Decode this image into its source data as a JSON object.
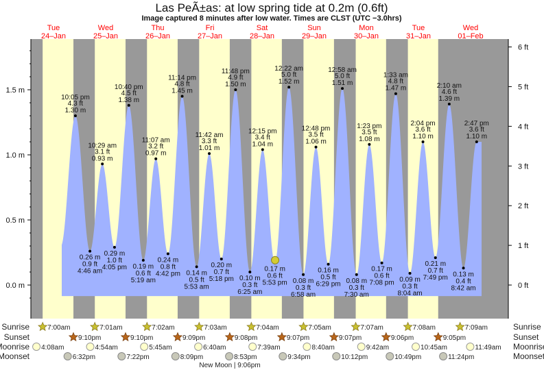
{
  "title": "Las PeÃ±as: at low  spring tide at 0.2m (0.6ft)",
  "subtitle": "Image captured 8 minutes after low water. Times are CLST (UTC −3.0hrs)",
  "colors": {
    "day": "#ffffcc",
    "night": "#999999",
    "water": "#a0b2ff",
    "day_label": "#ff0000",
    "now_marker": "#d4cc33"
  },
  "days": [
    {
      "weekday": "Tue",
      "date": "24–Jan"
    },
    {
      "weekday": "Wed",
      "date": "25–Jan"
    },
    {
      "weekday": "Thu",
      "date": "26–Jan"
    },
    {
      "weekday": "Fri",
      "date": "27–Jan"
    },
    {
      "weekday": "Sat",
      "date": "28–Jan"
    },
    {
      "weekday": "Sun",
      "date": "29–Jan"
    },
    {
      "weekday": "Mon",
      "date": "30–Jan"
    },
    {
      "weekday": "Tue",
      "date": "31–Jan"
    },
    {
      "weekday": "Wed",
      "date": "01–Feb"
    }
  ],
  "chart_data": {
    "type": "area",
    "y_left_ticks": [
      "0.0 m",
      "0.5 m",
      "1.0 m",
      "1.5 m"
    ],
    "y_left_values": [
      0,
      0.5,
      1.0,
      1.5
    ],
    "y_right_ticks": [
      "0 ft",
      "1 ft",
      "2 ft",
      "3 ft",
      "4 ft",
      "5 ft",
      "6 ft"
    ],
    "y_right_values": [
      0,
      1,
      2,
      3,
      4,
      5,
      6
    ],
    "now": {
      "day": "28–Jan",
      "time": "6:01 pm",
      "m": 0.17
    },
    "extremes": [
      {
        "day": "24–Jan",
        "time": "10:05 pm",
        "ft": "4.3 ft",
        "m": 1.3,
        "type": "high"
      },
      {
        "day": "25–Jan",
        "time": "4:46 am",
        "ft": "0.9 ft",
        "m": 0.26,
        "type": "low"
      },
      {
        "day": "25–Jan",
        "time": "10:29 am",
        "ft": "3.1 ft",
        "m": 0.93,
        "type": "high"
      },
      {
        "day": "25–Jan",
        "time": "4:05 pm",
        "ft": "1.0 ft",
        "m": 0.29,
        "type": "low"
      },
      {
        "day": "25–Jan",
        "time": "10:40 pm",
        "ft": "4.5 ft",
        "m": 1.38,
        "type": "high"
      },
      {
        "day": "26–Jan",
        "time": "5:19 am",
        "ft": "0.6 ft",
        "m": 0.19,
        "type": "low"
      },
      {
        "day": "26–Jan",
        "time": "11:07 am",
        "ft": "3.2 ft",
        "m": 0.97,
        "type": "high"
      },
      {
        "day": "26–Jan",
        "time": "4:42 pm",
        "ft": "0.8 ft",
        "m": 0.24,
        "type": "low"
      },
      {
        "day": "26–Jan",
        "time": "11:14 pm",
        "ft": "4.8 ft",
        "m": 1.45,
        "type": "high"
      },
      {
        "day": "27–Jan",
        "time": "5:53 am",
        "ft": "0.5 ft",
        "m": 0.14,
        "type": "low"
      },
      {
        "day": "27–Jan",
        "time": "11:42 am",
        "ft": "3.3 ft",
        "m": 1.01,
        "type": "high"
      },
      {
        "day": "27–Jan",
        "time": "5:18 pm",
        "ft": "0.7 ft",
        "m": 0.2,
        "type": "low"
      },
      {
        "day": "27–Jan",
        "time": "11:48 pm",
        "ft": "4.9 ft",
        "m": 1.5,
        "type": "high"
      },
      {
        "day": "28–Jan",
        "time": "6:25 am",
        "ft": "0.3 ft",
        "m": 0.1,
        "type": "low"
      },
      {
        "day": "28–Jan",
        "time": "12:15 pm",
        "ft": "3.4 ft",
        "m": 1.04,
        "type": "high"
      },
      {
        "day": "28–Jan",
        "time": "5:53 pm",
        "ft": "0.6 ft",
        "m": 0.17,
        "type": "low"
      },
      {
        "day": "29–Jan",
        "time": "12:22 am",
        "ft": "5.0 ft",
        "m": 1.52,
        "type": "high"
      },
      {
        "day": "29–Jan",
        "time": "6:58 am",
        "ft": "0.3 ft",
        "m": 0.08,
        "type": "low"
      },
      {
        "day": "29–Jan",
        "time": "12:48 pm",
        "ft": "3.5 ft",
        "m": 1.06,
        "type": "high"
      },
      {
        "day": "29–Jan",
        "time": "6:29 pm",
        "ft": "0.5 ft",
        "m": 0.16,
        "type": "low"
      },
      {
        "day": "30–Jan",
        "time": "12:58 am",
        "ft": "5.0 ft",
        "m": 1.51,
        "type": "high"
      },
      {
        "day": "30–Jan",
        "time": "7:30 am",
        "ft": "0.3 ft",
        "m": 0.08,
        "type": "low"
      },
      {
        "day": "30–Jan",
        "time": "1:23 pm",
        "ft": "3.5 ft",
        "m": 1.08,
        "type": "high"
      },
      {
        "day": "30–Jan",
        "time": "7:08 pm",
        "ft": "0.6 ft",
        "m": 0.17,
        "type": "low"
      },
      {
        "day": "31–Jan",
        "time": "1:33 am",
        "ft": "4.8 ft",
        "m": 1.47,
        "type": "high"
      },
      {
        "day": "31–Jan",
        "time": "8:04 am",
        "ft": "0.3 ft",
        "m": 0.09,
        "type": "low"
      },
      {
        "day": "31–Jan",
        "time": "2:04 pm",
        "ft": "3.6 ft",
        "m": 1.1,
        "type": "high"
      },
      {
        "day": "31–Jan",
        "time": "7:49 pm",
        "ft": "0.7 ft",
        "m": 0.21,
        "type": "low"
      },
      {
        "day": "01–Feb",
        "time": "2:10 am",
        "ft": "4.6 ft",
        "m": 1.39,
        "type": "high"
      },
      {
        "day": "01–Feb",
        "time": "8:42 am",
        "ft": "0.4 ft",
        "m": 0.13,
        "type": "low"
      },
      {
        "day": "01–Feb",
        "time": "2:47 pm",
        "ft": "3.6 ft",
        "m": 1.1,
        "type": "high"
      }
    ]
  },
  "rows": {
    "sunrise": {
      "label": "Sunrise",
      "items": [
        {
          "day": "24–Jan",
          "time": "7:00am"
        },
        {
          "day": "25–Jan",
          "time": "7:01am"
        },
        {
          "day": "26–Jan",
          "time": "7:02am"
        },
        {
          "day": "27–Jan",
          "time": "7:03am"
        },
        {
          "day": "28–Jan",
          "time": "7:04am"
        },
        {
          "day": "29–Jan",
          "time": "7:05am"
        },
        {
          "day": "30–Jan",
          "time": "7:07am"
        },
        {
          "day": "31–Jan",
          "time": "7:08am"
        },
        {
          "day": "01–Feb",
          "time": "7:09am"
        }
      ]
    },
    "sunset": {
      "label": "Sunset",
      "items": [
        {
          "day": "24–Jan",
          "time": "9:10pm"
        },
        {
          "day": "25–Jan",
          "time": "9:10pm"
        },
        {
          "day": "26–Jan",
          "time": "9:09pm"
        },
        {
          "day": "27–Jan",
          "time": "9:08pm"
        },
        {
          "day": "28–Jan",
          "time": "9:07pm"
        },
        {
          "day": "29–Jan",
          "time": "9:07pm"
        },
        {
          "day": "30–Jan",
          "time": "9:06pm"
        },
        {
          "day": "31–Jan",
          "time": "9:05pm"
        }
      ]
    },
    "moonrise": {
      "label": "Moonrise",
      "items": [
        {
          "day": "24–Jan",
          "time": "4:08am"
        },
        {
          "day": "25–Jan",
          "time": "4:54am"
        },
        {
          "day": "26–Jan",
          "time": "5:45am"
        },
        {
          "day": "27–Jan",
          "time": "6:40am"
        },
        {
          "day": "28–Jan",
          "time": "7:39am"
        },
        {
          "day": "29–Jan",
          "time": "8:40am"
        },
        {
          "day": "30–Jan",
          "time": "9:42am"
        },
        {
          "day": "31–Jan",
          "time": "10:45am"
        },
        {
          "day": "01–Feb",
          "time": "11:49am"
        }
      ]
    },
    "moonset": {
      "label": "Moonset",
      "items": [
        {
          "day": "24–Jan",
          "time": "6:32pm"
        },
        {
          "day": "25–Jan",
          "time": "7:22pm"
        },
        {
          "day": "26–Jan",
          "time": "8:09pm"
        },
        {
          "day": "27–Jan",
          "time": "8:53pm"
        },
        {
          "day": "28–Jan",
          "time": "9:34pm"
        },
        {
          "day": "29–Jan",
          "time": "10:12pm"
        },
        {
          "day": "30–Jan",
          "time": "10:49pm"
        },
        {
          "day": "31–Jan",
          "time": "11:24pm"
        }
      ]
    }
  },
  "moon_phase": {
    "label": "New Moon | 9:06pm",
    "day": "27–Jan",
    "time": "9:06pm"
  }
}
